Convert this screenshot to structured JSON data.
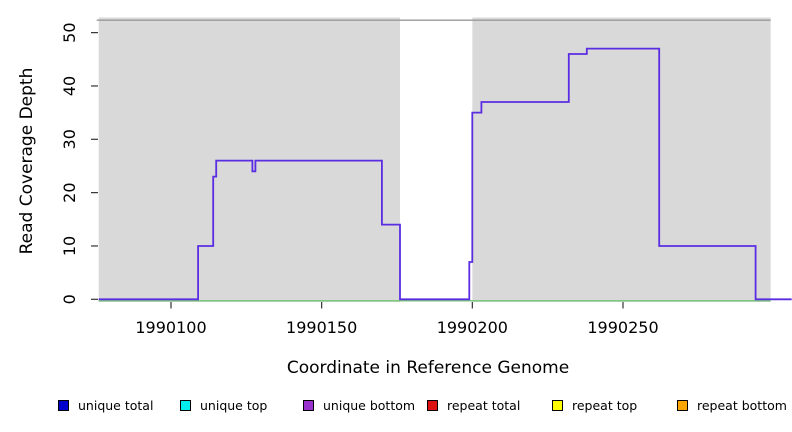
{
  "figure": {
    "xlabel": "Coordinate in Reference Genome",
    "ylabel": "Read Coverage Depth"
  },
  "chart_data": {
    "type": "line",
    "subtype": "step-coverage",
    "xlabel": "Coordinate in Reference Genome",
    "ylabel": "Read Coverage Depth",
    "xlim": [
      1990076,
      1990306
    ],
    "ylim": [
      0,
      52
    ],
    "grid": false,
    "x_ticks": [
      {
        "coord": 1990100,
        "label": "1990100"
      },
      {
        "coord": 1990150,
        "label": "1990150"
      },
      {
        "coord": 1990200,
        "label": "1990200"
      },
      {
        "coord": 1990250,
        "label": "1990250"
      }
    ],
    "y_ticks": [
      {
        "value": 0,
        "label": "0"
      },
      {
        "value": 10,
        "label": "10"
      },
      {
        "value": 20,
        "label": "20"
      },
      {
        "value": 30,
        "label": "30"
      },
      {
        "value": 40,
        "label": "40"
      },
      {
        "value": 50,
        "label": "50"
      }
    ],
    "panel_color": "#D9D9D9",
    "panel_border_color": "#999999",
    "shaded_regions": [
      {
        "start": 1990076,
        "end": 1990176
      },
      {
        "start": 1990200,
        "end": 1990299
      }
    ],
    "main_series": {
      "name": "unique bottom coverage",
      "color": "#5A2CE2",
      "steps": [
        [
          1990076,
          0
        ],
        [
          1990109,
          10
        ],
        [
          1990114,
          23
        ],
        [
          1990115,
          26
        ],
        [
          1990127,
          24
        ],
        [
          1990128,
          26
        ],
        [
          1990170,
          14
        ],
        [
          1990176,
          0
        ],
        [
          1990199,
          7
        ],
        [
          1990200,
          35
        ],
        [
          1990203,
          37
        ],
        [
          1990232,
          46
        ],
        [
          1990238,
          47
        ],
        [
          1990262,
          10
        ],
        [
          1990294,
          0
        ]
      ],
      "end_coord": 1990306
    },
    "zero_series": {
      "name": "zero coverage baseline",
      "color": "#7CC87C",
      "value": 0,
      "start": 1990076,
      "end": 1990299
    }
  },
  "legend": {
    "items": [
      {
        "label": "unique total",
        "color": "#0000CD"
      },
      {
        "label": "unique top",
        "color": "#00EEEE"
      },
      {
        "label": "unique bottom",
        "color": "#9932CC"
      },
      {
        "label": "repeat total",
        "color": "#DD1111"
      },
      {
        "label": "repeat top",
        "color": "#FFFF00"
      },
      {
        "label": "repeat bottom",
        "color": "#FFA500"
      }
    ]
  }
}
